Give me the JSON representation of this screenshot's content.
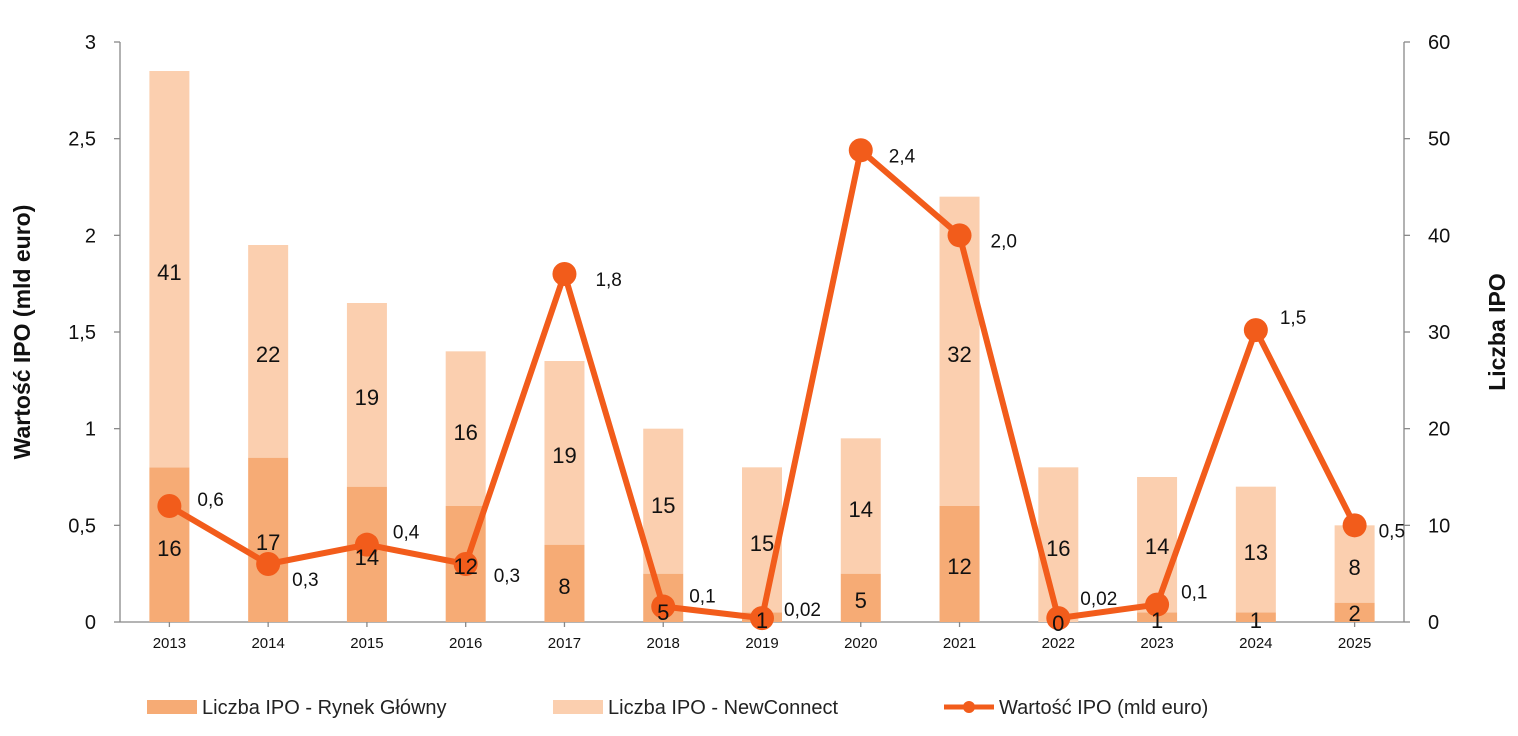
{
  "chart_data": {
    "type": "bar",
    "categories": [
      "2013",
      "2014",
      "2015",
      "2016",
      "2017",
      "2018",
      "2019",
      "2020",
      "2021",
      "2022",
      "2023",
      "2024",
      "2025"
    ],
    "series": [
      {
        "name": "Liczba IPO - Rynek Główny",
        "kind": "bar",
        "axis": "right",
        "color": "#f6ab75",
        "values": [
          16,
          17,
          14,
          12,
          8,
          5,
          1,
          5,
          12,
          0,
          1,
          1,
          2
        ],
        "labels": [
          "16",
          "17",
          "14",
          "12",
          "8",
          "5",
          "1",
          "5",
          "12",
          "0",
          "1",
          "1",
          "2"
        ]
      },
      {
        "name": "Liczba IPO - NewConnect",
        "kind": "bar",
        "axis": "right",
        "color": "#fbcfaf",
        "values": [
          41,
          22,
          19,
          16,
          19,
          15,
          15,
          14,
          32,
          16,
          14,
          13,
          8
        ],
        "labels": [
          "41",
          "22",
          "19",
          "16",
          "19",
          "15",
          "15",
          "14",
          "32",
          "16",
          "14",
          "13",
          "8"
        ]
      },
      {
        "name": "Wartość IPO (mld euro)",
        "kind": "line",
        "axis": "left",
        "color": "#f25c1b",
        "values": [
          0.6,
          0.3,
          0.4,
          0.3,
          1.8,
          0.08,
          0.02,
          2.44,
          2.0,
          0.02,
          0.09,
          1.51,
          0.5
        ],
        "labels": [
          "0,6",
          "0,3",
          "0,4",
          "0,3",
          "1,8",
          "0,1",
          "0,02",
          "2,4",
          "2,0",
          "0,02",
          "0,1",
          "1,5",
          "0,5"
        ]
      }
    ],
    "y_left": {
      "label": "Wartość IPO (mld euro)",
      "min": 0,
      "max": 3,
      "ticks": [
        0,
        0.5,
        1,
        1.5,
        2,
        2.5,
        3
      ],
      "tick_labels": [
        "0",
        "0,5",
        "1",
        "1,5",
        "2",
        "2,5",
        "3"
      ]
    },
    "y_right": {
      "label": "Liczba IPO",
      "min": 0,
      "max": 60,
      "ticks": [
        0,
        10,
        20,
        30,
        40,
        50,
        60
      ],
      "tick_labels": [
        "0",
        "10",
        "20",
        "30",
        "40",
        "50",
        "60"
      ]
    },
    "stacked": true,
    "grid": false,
    "legend": "bottom"
  }
}
